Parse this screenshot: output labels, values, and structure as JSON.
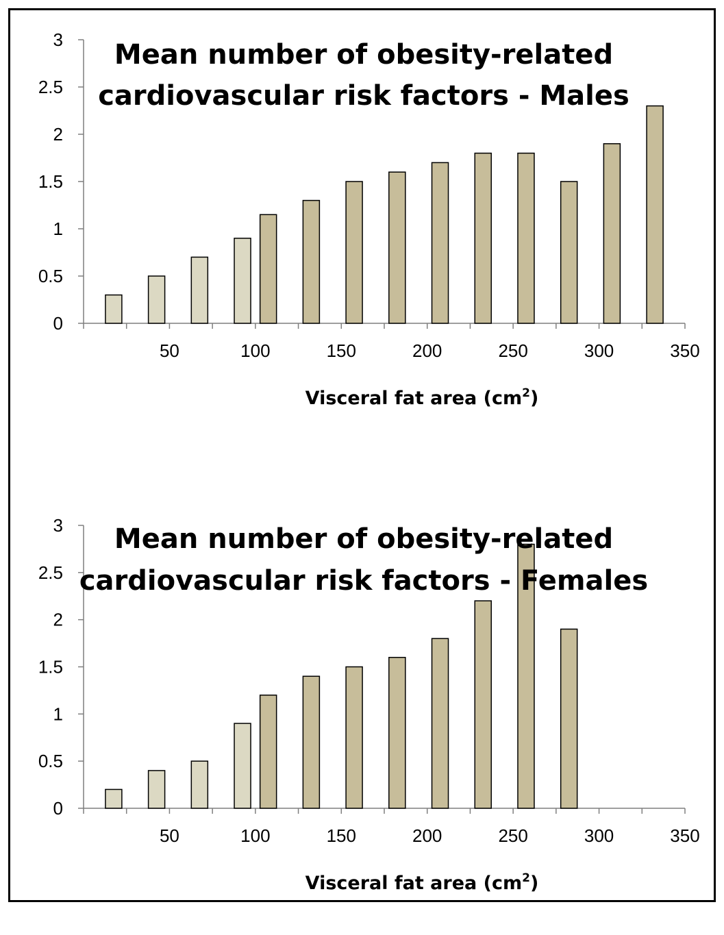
{
  "colors": {
    "light_bar": "#dcd9c3",
    "dark_bar": "#c7bd9a",
    "axis": "#7f7f7f",
    "border": "#000000"
  },
  "chart_data": [
    {
      "type": "bar",
      "title_line1": "Mean number of obesity-related",
      "title_line2": "cardiovascular risk factors - Males",
      "xlabel": "Visceral fat area (cm",
      "xlabel_sup": "2",
      "xlabel_end": ")",
      "ylabel": "",
      "ylim": [
        0,
        3
      ],
      "xlim": [
        0,
        350
      ],
      "yticks": [
        "0",
        "0.5",
        "1",
        "1.5",
        "2",
        "2.5",
        "3"
      ],
      "xticks": [
        "50",
        "100",
        "150",
        "200",
        "250",
        "300",
        "350"
      ],
      "x": [
        17.5,
        42.5,
        67.5,
        92.5,
        107.5,
        132.5,
        157.5,
        182.5,
        207.5,
        232.5,
        257.5,
        282.5,
        307.5,
        332.5
      ],
      "values": [
        0.3,
        0.5,
        0.7,
        0.9,
        1.15,
        1.3,
        1.5,
        1.6,
        1.7,
        1.8,
        1.8,
        1.5,
        1.9,
        2.3
      ],
      "shade": [
        "light",
        "light",
        "light",
        "light",
        "dark",
        "dark",
        "dark",
        "dark",
        "dark",
        "dark",
        "dark",
        "dark",
        "dark",
        "dark"
      ]
    },
    {
      "type": "bar",
      "title_line1": "Mean number of obesity-related",
      "title_line2": "cardiovascular risk factors - Females",
      "xlabel": "Visceral fat area (cm",
      "xlabel_sup": "2",
      "xlabel_end": ")",
      "ylabel": "",
      "ylim": [
        0,
        3
      ],
      "xlim": [
        0,
        350
      ],
      "yticks": [
        "0",
        "0.5",
        "1",
        "1.5",
        "2",
        "2.5",
        "3"
      ],
      "xticks": [
        "50",
        "100",
        "150",
        "200",
        "250",
        "300",
        "350"
      ],
      "x": [
        17.5,
        42.5,
        67.5,
        92.5,
        107.5,
        132.5,
        157.5,
        182.5,
        207.5,
        232.5,
        257.5,
        282.5
      ],
      "values": [
        0.2,
        0.4,
        0.5,
        0.9,
        1.2,
        1.4,
        1.5,
        1.6,
        1.8,
        2.2,
        2.8,
        1.9
      ],
      "shade": [
        "light",
        "light",
        "light",
        "light",
        "dark",
        "dark",
        "dark",
        "dark",
        "dark",
        "dark",
        "dark",
        "dark"
      ]
    }
  ]
}
